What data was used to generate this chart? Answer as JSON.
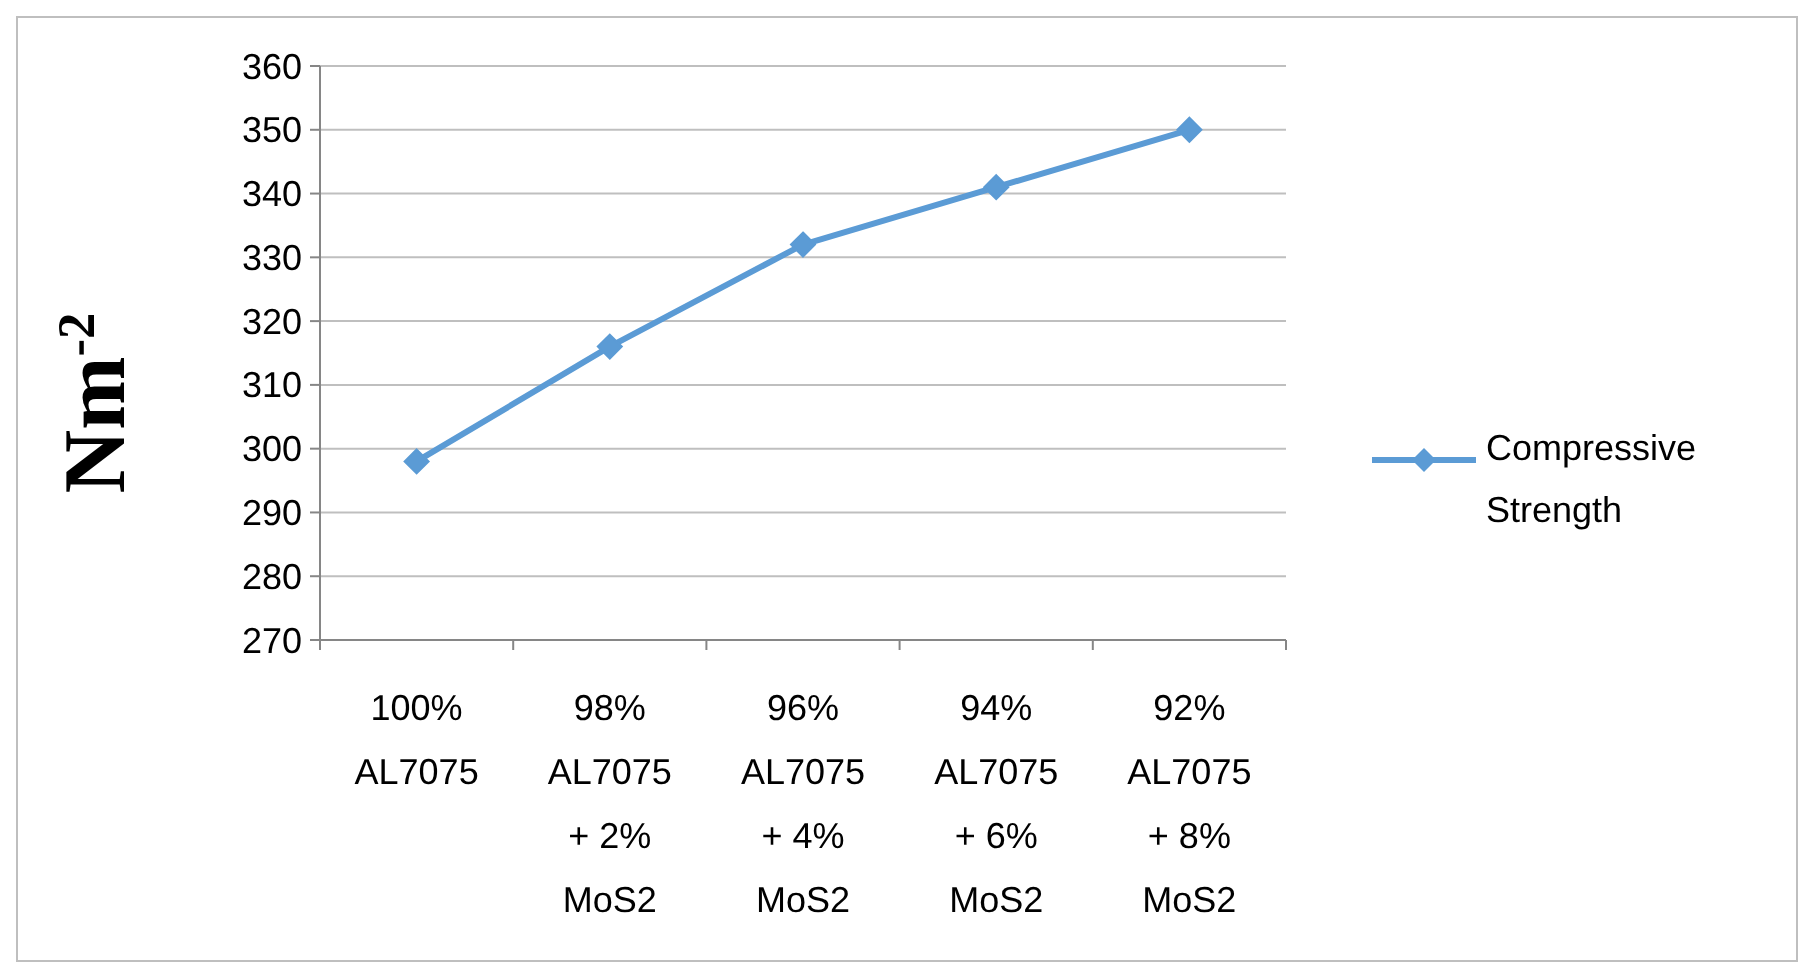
{
  "chart_data": {
    "type": "line",
    "ylabel": "Nm$^{-2}$",
    "categories": [
      "100%\nAL7075",
      "98%\nAL7075\n+ 2%\nMoS2",
      "96%\nAL7075\n+ 4%\nMoS2",
      "94%\nAL7075\n+ 6%\nMoS2",
      "92%\nAL7075\n+ 8%\nMoS2"
    ],
    "series": [
      {
        "name": "Compressive Strength",
        "color": "#5b9bd5",
        "values": [
          298,
          316,
          332,
          341,
          350
        ]
      }
    ],
    "ylim": [
      270,
      360
    ],
    "yticks": [
      270,
      280,
      290,
      300,
      310,
      320,
      330,
      340,
      350,
      360
    ],
    "grid": "y",
    "legend": "right",
    "marker": "diamond",
    "line_style": "solid"
  }
}
